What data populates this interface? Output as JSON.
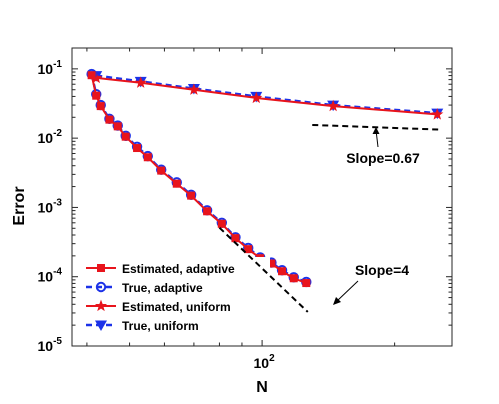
{
  "chart_data": {
    "type": "line",
    "xscale": "log",
    "yscale": "log",
    "xlabel": "N",
    "ylabel": "Error",
    "xlim": [
      37,
      270
    ],
    "ylim": [
      1e-05,
      0.2
    ],
    "x_tick_labels": [
      {
        "base": "10",
        "exp": "2",
        "value": 100
      }
    ],
    "y_tick_labels": [
      {
        "base": "10",
        "exp": "-1",
        "value": 0.1
      },
      {
        "base": "10",
        "exp": "-2",
        "value": 0.01
      },
      {
        "base": "10",
        "exp": "-3",
        "value": 0.001
      },
      {
        "base": "10",
        "exp": "-4",
        "value": 0.0001
      },
      {
        "base": "10",
        "exp": "-5",
        "value": 1e-05
      }
    ],
    "grid": false,
    "legend_position": "bottom-left",
    "series": [
      {
        "name": "Estimated, adaptive",
        "color": "#e8141c",
        "dash": "solid",
        "marker": "square",
        "x": [
          41,
          42,
          43,
          45,
          47,
          49,
          52,
          55,
          59,
          64,
          69,
          75,
          81,
          87,
          93,
          99,
          105,
          111,
          118,
          126
        ],
        "y": [
          0.081,
          0.041,
          0.029,
          0.0185,
          0.0148,
          0.0105,
          0.0072,
          0.0053,
          0.0034,
          0.0022,
          0.00148,
          0.00088,
          0.00058,
          0.00036,
          0.00025,
          0.000185,
          0.000155,
          0.00012,
          9.5e-05,
          8.1e-05
        ]
      },
      {
        "name": "True, adaptive",
        "color": "#1c32e8",
        "dash": "dashed",
        "marker": "circle",
        "x": [
          41,
          42,
          43,
          45,
          47,
          49,
          52,
          55,
          59,
          64,
          69,
          75,
          81,
          87,
          93,
          99,
          105,
          111,
          118,
          126
        ],
        "y": [
          0.084,
          0.043,
          0.03,
          0.019,
          0.0152,
          0.0108,
          0.0075,
          0.0055,
          0.0035,
          0.0023,
          0.00152,
          0.00091,
          0.0006,
          0.00037,
          0.00026,
          0.00019,
          0.00016,
          0.000124,
          9.8e-05,
          8.4e-05
        ]
      },
      {
        "name": "Estimated, uniform",
        "color": "#e8141c",
        "dash": "solid",
        "marker": "star",
        "x": [
          42,
          53,
          70,
          97,
          145,
          250
        ],
        "y": [
          0.074,
          0.063,
          0.05,
          0.038,
          0.029,
          0.022
        ]
      },
      {
        "name": "True, uniform",
        "color": "#1c32e8",
        "dash": "dashed",
        "marker": "triangle-down",
        "x": [
          42,
          53,
          70,
          97,
          145,
          250
        ],
        "y": [
          0.08,
          0.066,
          0.052,
          0.04,
          0.03,
          0.023
        ]
      }
    ],
    "annotations": [
      {
        "text": "Slope=0.67",
        "line": {
          "x": [
            130,
            252
          ],
          "y": [
            0.0155,
            0.0133
          ]
        }
      },
      {
        "text": "Slope=4",
        "line": {
          "x": [
            80,
            127
          ],
          "y": [
            0.00051,
            3.1e-05
          ]
        }
      }
    ]
  }
}
